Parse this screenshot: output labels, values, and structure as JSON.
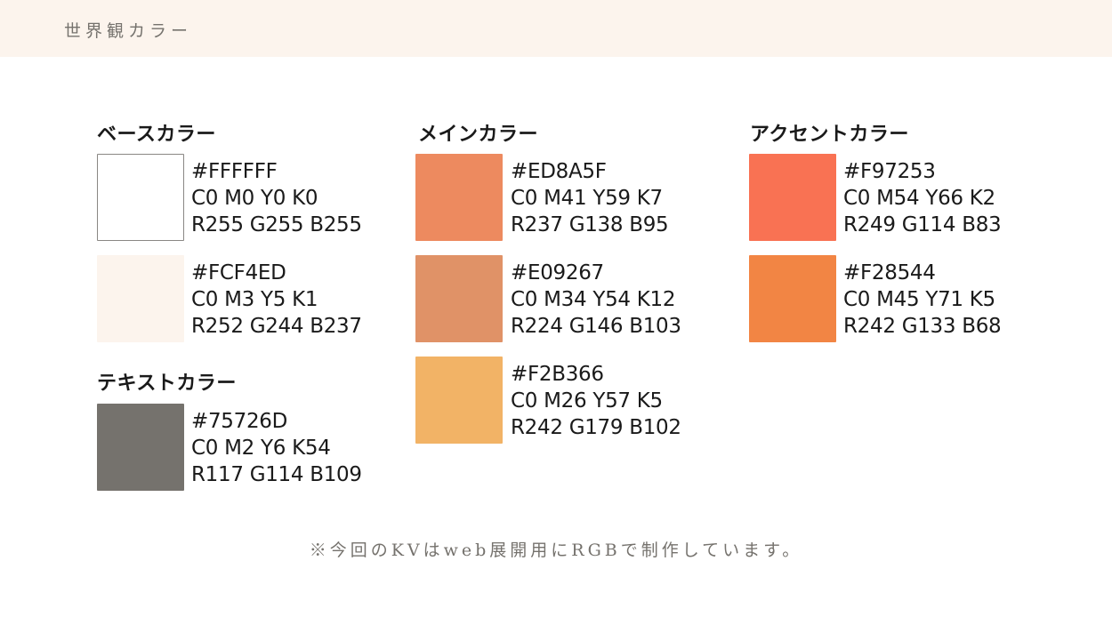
{
  "header": {
    "title": "世界観カラー"
  },
  "sections": [
    {
      "title": "ベースカラー",
      "colors": [
        {
          "swatch": "#FFFFFF",
          "hex": "#FFFFFF",
          "cmyk": "C0 M0 Y0 K0",
          "rgb": "R255 G255 B255"
        },
        {
          "swatch": "#FCF4ED",
          "hex": "#FCF4ED",
          "cmyk": "C0 M3 Y5 K1",
          "rgb": "R252 G244 B237"
        }
      ]
    },
    {
      "title": "テキストカラー",
      "colors": [
        {
          "swatch": "#75726D",
          "hex": "#75726D",
          "cmyk": "C0 M2 Y6 K54",
          "rgb": "R117 G114 B109"
        }
      ]
    },
    {
      "title": "メインカラー",
      "colors": [
        {
          "swatch": "#ED8A5F",
          "hex": "#ED8A5F",
          "cmyk": "C0 M41 Y59 K7",
          "rgb": "R237 G138 B95"
        },
        {
          "swatch": "#E09267",
          "hex": "#E09267",
          "cmyk": "C0 M34 Y54 K12",
          "rgb": "R224 G146 B103"
        },
        {
          "swatch": "#F2B366",
          "hex": "#F2B366",
          "cmyk": "C0 M26 Y57 K5",
          "rgb": "R242 G179 B102"
        }
      ]
    },
    {
      "title": "アクセントカラー",
      "colors": [
        {
          "swatch": "#F97253",
          "hex": "#F97253",
          "cmyk": "C0 M54 Y66 K2",
          "rgb": "R249 G114 B83"
        },
        {
          "swatch": "#F28544",
          "hex": "#F28544",
          "cmyk": "C0 M45 Y71 K5",
          "rgb": "R242 G133 B68"
        }
      ]
    }
  ],
  "footnote": "※今回のKVはweb展開用にRGBで制作しています。"
}
